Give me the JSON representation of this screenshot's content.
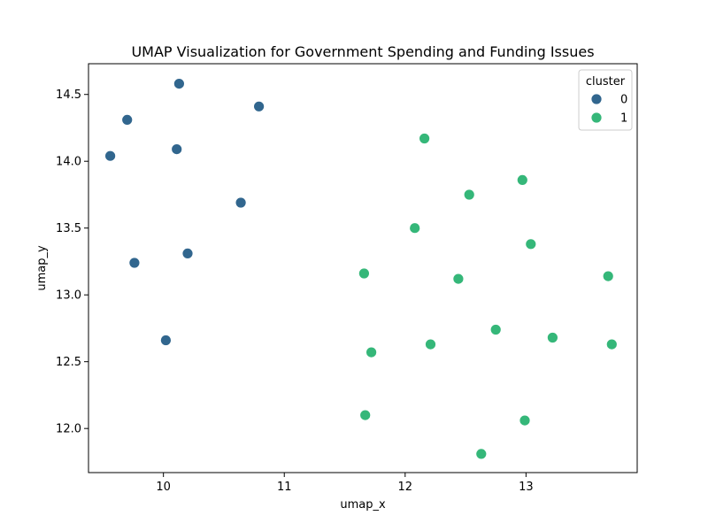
{
  "chart_data": {
    "type": "scatter",
    "title": "UMAP Visualization for Government Spending and Funding Issues",
    "xlabel": "umap_x",
    "ylabel": "umap_y",
    "xlim": [
      9.38,
      13.92
    ],
    "ylim": [
      11.67,
      14.73
    ],
    "xticks": [
      10,
      11,
      12,
      13
    ],
    "yticks": [
      12.0,
      12.5,
      13.0,
      13.5,
      14.0,
      14.5
    ],
    "xtick_labels": [
      "10",
      "11",
      "12",
      "13"
    ],
    "ytick_labels": [
      "12.0",
      "12.5",
      "13.0",
      "13.5",
      "14.0",
      "14.5"
    ],
    "grid": false,
    "legend": {
      "title": "cluster",
      "placement": "top-right"
    },
    "series": [
      {
        "name": "0",
        "color": "#31668e",
        "x": [
          10.13,
          10.79,
          9.7,
          10.11,
          9.56,
          10.64,
          9.76,
          10.2,
          10.02
        ],
        "y": [
          14.58,
          14.41,
          14.31,
          14.09,
          14.04,
          13.69,
          13.24,
          13.31,
          12.66
        ]
      },
      {
        "name": "1",
        "color": "#35b779",
        "x": [
          12.16,
          12.97,
          12.53,
          12.08,
          13.04,
          11.66,
          12.44,
          13.68,
          12.75,
          13.22,
          13.71,
          12.21,
          11.72,
          11.67,
          12.99,
          12.63
        ],
        "y": [
          14.17,
          13.86,
          13.75,
          13.5,
          13.38,
          13.16,
          13.12,
          13.14,
          12.74,
          12.68,
          12.63,
          12.63,
          12.57,
          12.1,
          12.06,
          11.81
        ]
      }
    ]
  }
}
